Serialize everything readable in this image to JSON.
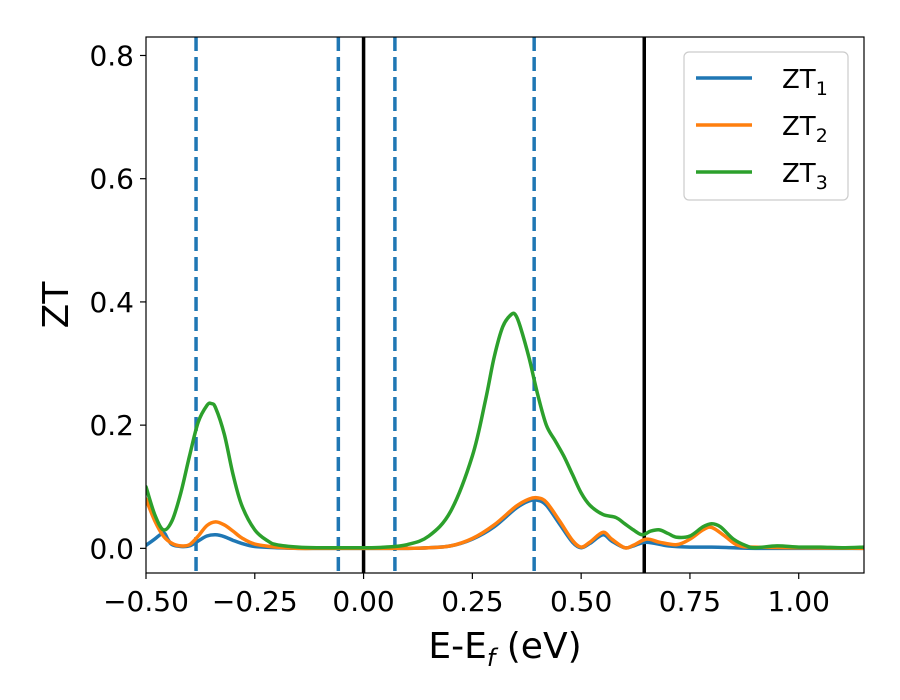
{
  "chart_data": {
    "type": "line",
    "title": "",
    "xlabel": "E-E",
    "xlabel_sub": "f",
    "xlabel_unit": " (eV)",
    "ylabel": "ZT",
    "xlim": [
      -0.5,
      1.15
    ],
    "ylim": [
      -0.04,
      0.83
    ],
    "xticks": [
      -0.5,
      -0.25,
      0.0,
      0.25,
      0.5,
      0.75,
      1.0
    ],
    "xtick_labels": [
      "−0.50",
      "−0.25",
      "0.00",
      "0.25",
      "0.50",
      "0.75",
      "1.00"
    ],
    "yticks": [
      0.0,
      0.2,
      0.4,
      0.6,
      0.8
    ],
    "ytick_labels": [
      "0.0",
      "0.2",
      "0.4",
      "0.6",
      "0.8"
    ],
    "grid": false,
    "legend_position": "top-right",
    "vlines_solid": [
      0.0,
      0.645
    ],
    "vlines_dashed": [
      -0.385,
      -0.058,
      0.072,
      0.392
    ],
    "vline_solid_color": "#000000",
    "vline_dashed_color": "#1f77b4",
    "series": [
      {
        "name": "ZT",
        "sub": "1",
        "color": "#1f77b4",
        "x": [
          -0.5,
          -0.48,
          -0.46,
          -0.45,
          -0.44,
          -0.42,
          -0.4,
          -0.38,
          -0.36,
          -0.34,
          -0.32,
          -0.3,
          -0.28,
          -0.25,
          -0.2,
          -0.15,
          -0.1,
          -0.05,
          0.0,
          0.05,
          0.1,
          0.15,
          0.2,
          0.25,
          0.3,
          0.35,
          0.38,
          0.4,
          0.42,
          0.45,
          0.48,
          0.5,
          0.52,
          0.55,
          0.57,
          0.6,
          0.62,
          0.65,
          0.7,
          0.75,
          0.8,
          0.85,
          0.9,
          1.0,
          1.15
        ],
        "y": [
          0.005,
          0.015,
          0.025,
          0.015,
          0.006,
          0.003,
          0.004,
          0.012,
          0.02,
          0.022,
          0.019,
          0.013,
          0.008,
          0.003,
          0.001,
          0.0,
          0.0,
          0.0,
          0.0,
          0.0,
          0.0,
          0.001,
          0.004,
          0.015,
          0.035,
          0.065,
          0.077,
          0.078,
          0.07,
          0.04,
          0.01,
          0.001,
          0.008,
          0.022,
          0.012,
          0.001,
          0.004,
          0.01,
          0.004,
          0.002,
          0.002,
          0.001,
          0.0,
          0.0,
          0.0
        ]
      },
      {
        "name": "ZT",
        "sub": "2",
        "color": "#ff7f0e",
        "x": [
          -0.5,
          -0.48,
          -0.46,
          -0.44,
          -0.42,
          -0.4,
          -0.38,
          -0.36,
          -0.34,
          -0.32,
          -0.3,
          -0.28,
          -0.25,
          -0.2,
          -0.15,
          -0.1,
          -0.05,
          0.0,
          0.05,
          0.1,
          0.15,
          0.2,
          0.25,
          0.3,
          0.35,
          0.38,
          0.4,
          0.42,
          0.45,
          0.48,
          0.5,
          0.52,
          0.55,
          0.57,
          0.6,
          0.62,
          0.65,
          0.68,
          0.72,
          0.75,
          0.78,
          0.8,
          0.83,
          0.86,
          0.9,
          1.0,
          1.15
        ],
        "y": [
          0.08,
          0.045,
          0.02,
          0.008,
          0.004,
          0.006,
          0.02,
          0.037,
          0.043,
          0.038,
          0.028,
          0.017,
          0.007,
          0.002,
          0.0,
          0.0,
          0.0,
          0.0,
          0.0,
          0.0,
          0.001,
          0.004,
          0.016,
          0.038,
          0.068,
          0.08,
          0.082,
          0.075,
          0.045,
          0.013,
          0.002,
          0.01,
          0.026,
          0.015,
          0.001,
          0.005,
          0.015,
          0.01,
          0.006,
          0.015,
          0.03,
          0.034,
          0.02,
          0.005,
          0.002,
          0.001,
          0.0
        ]
      },
      {
        "name": "ZT",
        "sub": "3",
        "color": "#2ca02c",
        "x": [
          -0.5,
          -0.48,
          -0.46,
          -0.44,
          -0.42,
          -0.4,
          -0.38,
          -0.36,
          -0.35,
          -0.34,
          -0.32,
          -0.3,
          -0.28,
          -0.25,
          -0.22,
          -0.2,
          -0.15,
          -0.1,
          -0.05,
          0.0,
          0.05,
          0.1,
          0.15,
          0.2,
          0.25,
          0.28,
          0.3,
          0.32,
          0.34,
          0.35,
          0.36,
          0.38,
          0.4,
          0.42,
          0.44,
          0.46,
          0.48,
          0.5,
          0.52,
          0.55,
          0.58,
          0.6,
          0.62,
          0.64,
          0.66,
          0.68,
          0.7,
          0.72,
          0.75,
          0.78,
          0.8,
          0.82,
          0.85,
          0.88,
          0.9,
          0.95,
          1.0,
          1.05,
          1.1,
          1.15
        ],
        "y": [
          0.1,
          0.055,
          0.03,
          0.045,
          0.09,
          0.15,
          0.205,
          0.232,
          0.235,
          0.228,
          0.185,
          0.12,
          0.07,
          0.03,
          0.012,
          0.006,
          0.002,
          0.001,
          0.001,
          0.001,
          0.002,
          0.006,
          0.02,
          0.06,
          0.15,
          0.24,
          0.31,
          0.36,
          0.38,
          0.378,
          0.36,
          0.31,
          0.25,
          0.2,
          0.175,
          0.15,
          0.12,
          0.09,
          0.07,
          0.055,
          0.05,
          0.04,
          0.03,
          0.022,
          0.028,
          0.03,
          0.024,
          0.018,
          0.02,
          0.035,
          0.04,
          0.035,
          0.015,
          0.004,
          0.001,
          0.004,
          0.002,
          0.002,
          0.001,
          0.002
        ]
      }
    ]
  }
}
